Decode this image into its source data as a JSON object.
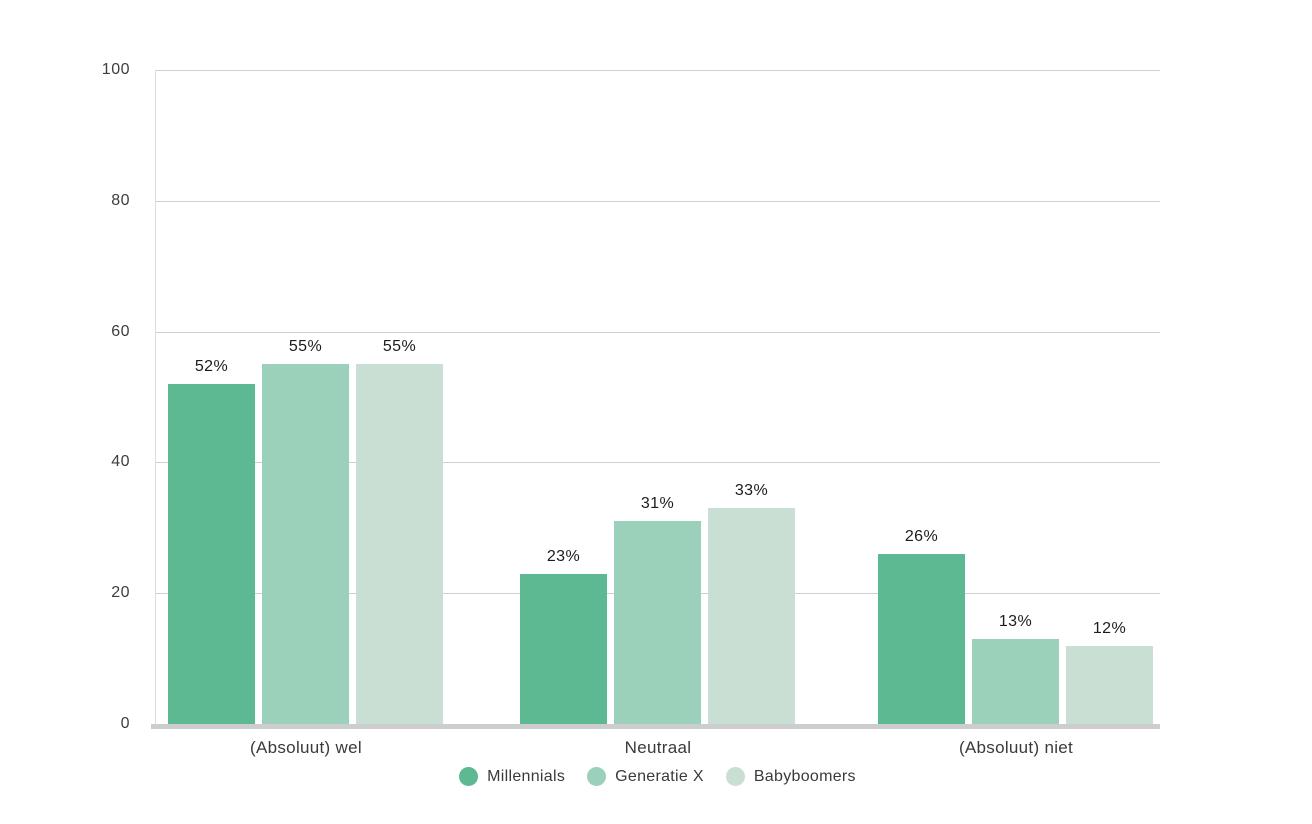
{
  "chart_data": {
    "type": "bar",
    "title": "",
    "categories": [
      "(Absoluut) wel",
      "Neutraal",
      "(Absoluut) niet"
    ],
    "series": [
      {
        "name": "Millennials",
        "color": "#5cb992",
        "values": [
          52,
          23,
          26
        ]
      },
      {
        "name": "Generatie X",
        "color": "#9bd0ba",
        "values": [
          55,
          31,
          13
        ]
      },
      {
        "name": "Babyboomers",
        "color": "#c9dfd3",
        "values": [
          55,
          33,
          12
        ]
      }
    ],
    "value_labels": [
      [
        "52%",
        "23%",
        "26%"
      ],
      [
        "55%",
        "31%",
        "13%"
      ],
      [
        "55%",
        "33%",
        "12%"
      ]
    ],
    "value_suffix": "%",
    "ylim": [
      0,
      100
    ],
    "yticks": [
      0,
      20,
      40,
      60,
      80,
      100
    ],
    "ytick_labels": [
      "0",
      "20",
      "40",
      "60",
      "80",
      "100"
    ],
    "grid": true,
    "legend_position": "bottom",
    "gridline_color": "#d0d0d0",
    "axis_color": "#cdcdcd"
  }
}
